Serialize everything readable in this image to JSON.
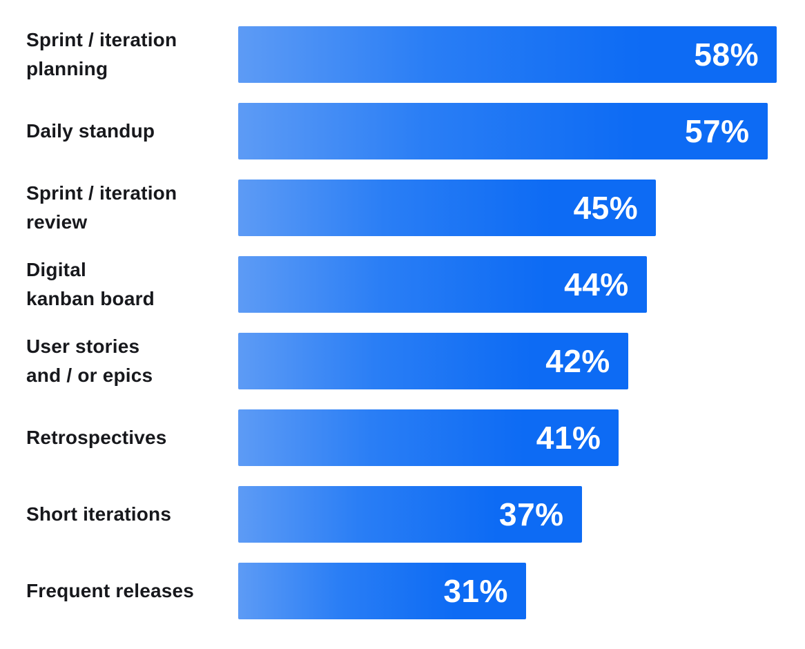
{
  "chart_data": {
    "type": "bar",
    "orientation": "horizontal",
    "categories": [
      "Sprint / iteration planning",
      "Daily standup",
      "Sprint / iteration review",
      "Digital kanban board",
      "User stories and / or epics",
      "Retrospectives",
      "Short iterations",
      "Frequent releases"
    ],
    "category_lines": [
      [
        "Sprint / iteration",
        "planning"
      ],
      [
        "Daily standup"
      ],
      [
        "Sprint / iteration",
        "review"
      ],
      [
        "Digital",
        "kanban board"
      ],
      [
        "User stories",
        "and / or epics"
      ],
      [
        "Retrospectives"
      ],
      [
        "Short iterations"
      ],
      [
        "Frequent releases"
      ]
    ],
    "values": [
      58,
      57,
      45,
      44,
      42,
      41,
      37,
      31
    ],
    "value_labels": [
      "58%",
      "57%",
      "45%",
      "44%",
      "42%",
      "41%",
      "37%",
      "31%"
    ],
    "xlim": [
      0,
      58
    ],
    "grid": false,
    "legend": false,
    "bar_gradient_start": "#5d9bf5",
    "bar_gradient_end": "#0d6bf4",
    "label_color": "#17181c",
    "value_label_color": "#ffffff"
  }
}
